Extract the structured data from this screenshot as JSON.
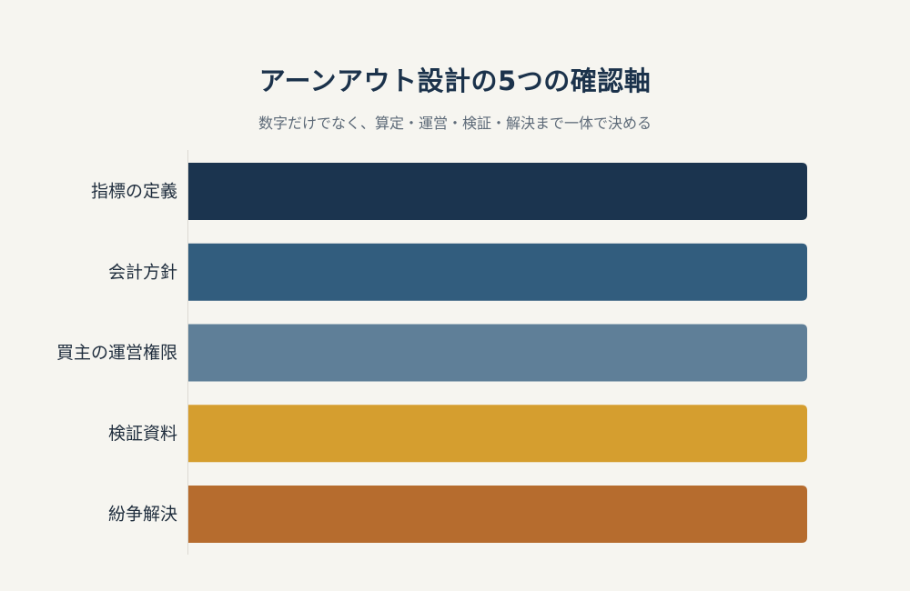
{
  "chart_data": {
    "type": "bar",
    "orientation": "horizontal",
    "title": "アーンアウト設計の5つの確認軸",
    "subtitle": "数字だけでなく、算定・運営・検証・解決まで一体で決める",
    "categories": [
      "指標の定義",
      "会計方針",
      "買主の運営権限",
      "検証資料",
      "紛争解決"
    ],
    "values": [
      1,
      1,
      1,
      1,
      1
    ],
    "xlim": [
      0,
      1
    ],
    "colors": [
      "#1b344f",
      "#325d7e",
      "#5f7f98",
      "#d59e2f",
      "#b66c2e"
    ],
    "grid": false,
    "legend": "none"
  }
}
